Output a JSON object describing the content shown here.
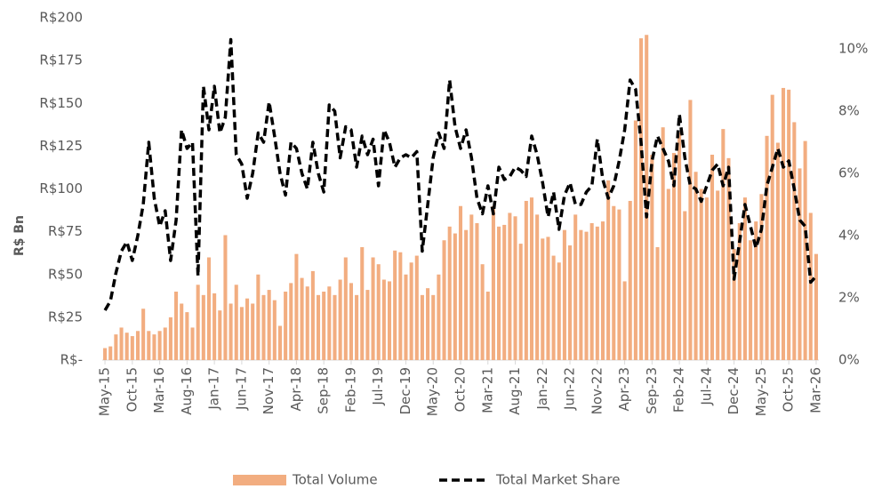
{
  "chart_data": {
    "type": "bar-line",
    "y_label": "R$ Bn",
    "legend": "bottom",
    "categories": [
      "May-15",
      null,
      null,
      null,
      null,
      "Oct-15",
      null,
      null,
      null,
      null,
      "Mar-16",
      null,
      null,
      null,
      null,
      "Aug-16",
      null,
      null,
      null,
      null,
      "Jan-17",
      null,
      null,
      null,
      null,
      "Jun-17",
      null,
      null,
      null,
      null,
      "Nov-17",
      null,
      null,
      null,
      null,
      "Apr-18",
      null,
      null,
      null,
      null,
      "Sep-18",
      null,
      null,
      null,
      null,
      "Feb-19",
      null,
      null,
      null,
      null,
      "Jul-19",
      null,
      null,
      null,
      null,
      "Dec-19",
      null,
      null,
      null,
      null,
      "May-20",
      null,
      null,
      null,
      null,
      "Oct-20",
      null,
      null,
      null,
      null,
      "Mar-21",
      null,
      null,
      null,
      null,
      "Aug-21",
      null,
      null,
      null,
      null,
      "Jan-22",
      null,
      null,
      null,
      null,
      "Jun-22",
      null,
      null,
      null,
      null,
      "Nov-22",
      null,
      null,
      null,
      null,
      "Apr-23",
      null,
      null,
      null,
      null,
      "Sep-23",
      null,
      null,
      null,
      null,
      "Feb-24",
      null,
      null,
      null,
      null,
      "Jul-24",
      null,
      null,
      null,
      null,
      "Dec-24",
      null,
      null,
      null,
      null,
      "May-25",
      null,
      null,
      null,
      null,
      "Oct-25",
      null,
      null,
      null,
      null,
      "Mar-26"
    ],
    "series": [
      {
        "name": "Total Volume",
        "color": "#f2ad80",
        "values": [
          7,
          8,
          15,
          19,
          16,
          14,
          17,
          30,
          17,
          15,
          17,
          19,
          25,
          40,
          33,
          28,
          19,
          44,
          38,
          60,
          39,
          29,
          73,
          33,
          44,
          31,
          36,
          33,
          50,
          38,
          41,
          35,
          20,
          40,
          45,
          62,
          48,
          43,
          52,
          38,
          40,
          43,
          38,
          47,
          60,
          45,
          38,
          66,
          41,
          60,
          56,
          47,
          46,
          64,
          63,
          50,
          57,
          61,
          38,
          42,
          38,
          50,
          70,
          78,
          74,
          90,
          76,
          85,
          80,
          56,
          40,
          90,
          78,
          79,
          86,
          84,
          68,
          93,
          95,
          85,
          71,
          72,
          61,
          57,
          76,
          67,
          85,
          76,
          75,
          80,
          78,
          81,
          105,
          90,
          88,
          46,
          93,
          140,
          188,
          190,
          120,
          66,
          136,
          100,
          121,
          133,
          87,
          152,
          110,
          100,
          95,
          120,
          99,
          135,
          118,
          65,
          80,
          95,
          70,
          81,
          97,
          131,
          155,
          127,
          159,
          158,
          139,
          112,
          128,
          86,
          62
        ]
      },
      {
        "name": "Total Market Share",
        "color": "#000000",
        "axis": "y2",
        "values": [
          1.6,
          1.9,
          2.8,
          3.5,
          3.8,
          3.2,
          4.0,
          5.0,
          7.0,
          5.2,
          4.3,
          4.8,
          3.2,
          4.5,
          7.4,
          6.8,
          7.0,
          2.7,
          8.8,
          7.4,
          8.8,
          7.3,
          7.8,
          10.3,
          6.6,
          6.3,
          5.2,
          6.0,
          7.3,
          7.0,
          8.3,
          7.2,
          6.0,
          5.3,
          7.0,
          6.8,
          6.0,
          5.5,
          7.0,
          6.0,
          5.4,
          8.2,
          8.0,
          6.5,
          7.5,
          7.4,
          6.2,
          7.2,
          6.6,
          7.1,
          5.6,
          7.4,
          7.0,
          6.2,
          6.5,
          6.6,
          6.5,
          6.7,
          3.5,
          5.0,
          6.5,
          7.3,
          6.8,
          9.0,
          7.5,
          6.8,
          7.4,
          6.5,
          5.2,
          4.7,
          5.6,
          4.7,
          6.2,
          5.8,
          5.9,
          6.2,
          6.1,
          5.9,
          7.2,
          6.6,
          5.7,
          4.6,
          5.4,
          4.2,
          5.3,
          5.7,
          5.0,
          5.0,
          5.4,
          5.6,
          7.1,
          5.8,
          5.2,
          5.6,
          6.4,
          7.4,
          9.0,
          8.7,
          7.0,
          4.6,
          6.4,
          7.2,
          6.8,
          6.4,
          5.6,
          7.9,
          6.5,
          5.6,
          5.5,
          5.1,
          5.6,
          6.1,
          6.3,
          5.6,
          6.2,
          2.6,
          3.8,
          5.0,
          4.3,
          3.6,
          4.2,
          5.6,
          6.2,
          6.8,
          6.2,
          6.4,
          5.5,
          4.5,
          4.3,
          2.5,
          2.7
        ]
      }
    ],
    "ylim": [
      0,
      200
    ],
    "yticks": [
      {
        "value": 0,
        "label": "R$-"
      },
      {
        "value": 25,
        "label": "R$25"
      },
      {
        "value": 50,
        "label": "R$50"
      },
      {
        "value": 75,
        "label": "R$75"
      },
      {
        "value": 100,
        "label": "R$100"
      },
      {
        "value": 125,
        "label": "R$125"
      },
      {
        "value": 150,
        "label": "R$150"
      },
      {
        "value": 175,
        "label": "R$175"
      },
      {
        "value": 200,
        "label": "R$200"
      }
    ],
    "y2lim": [
      0,
      11
    ],
    "y2ticks": [
      {
        "value": 0,
        "label": "0%"
      },
      {
        "value": 2,
        "label": "2%"
      },
      {
        "value": 4,
        "label": "4%"
      },
      {
        "value": 6,
        "label": "6%"
      },
      {
        "value": 8,
        "label": "8%"
      },
      {
        "value": 10,
        "label": "10%"
      }
    ]
  }
}
